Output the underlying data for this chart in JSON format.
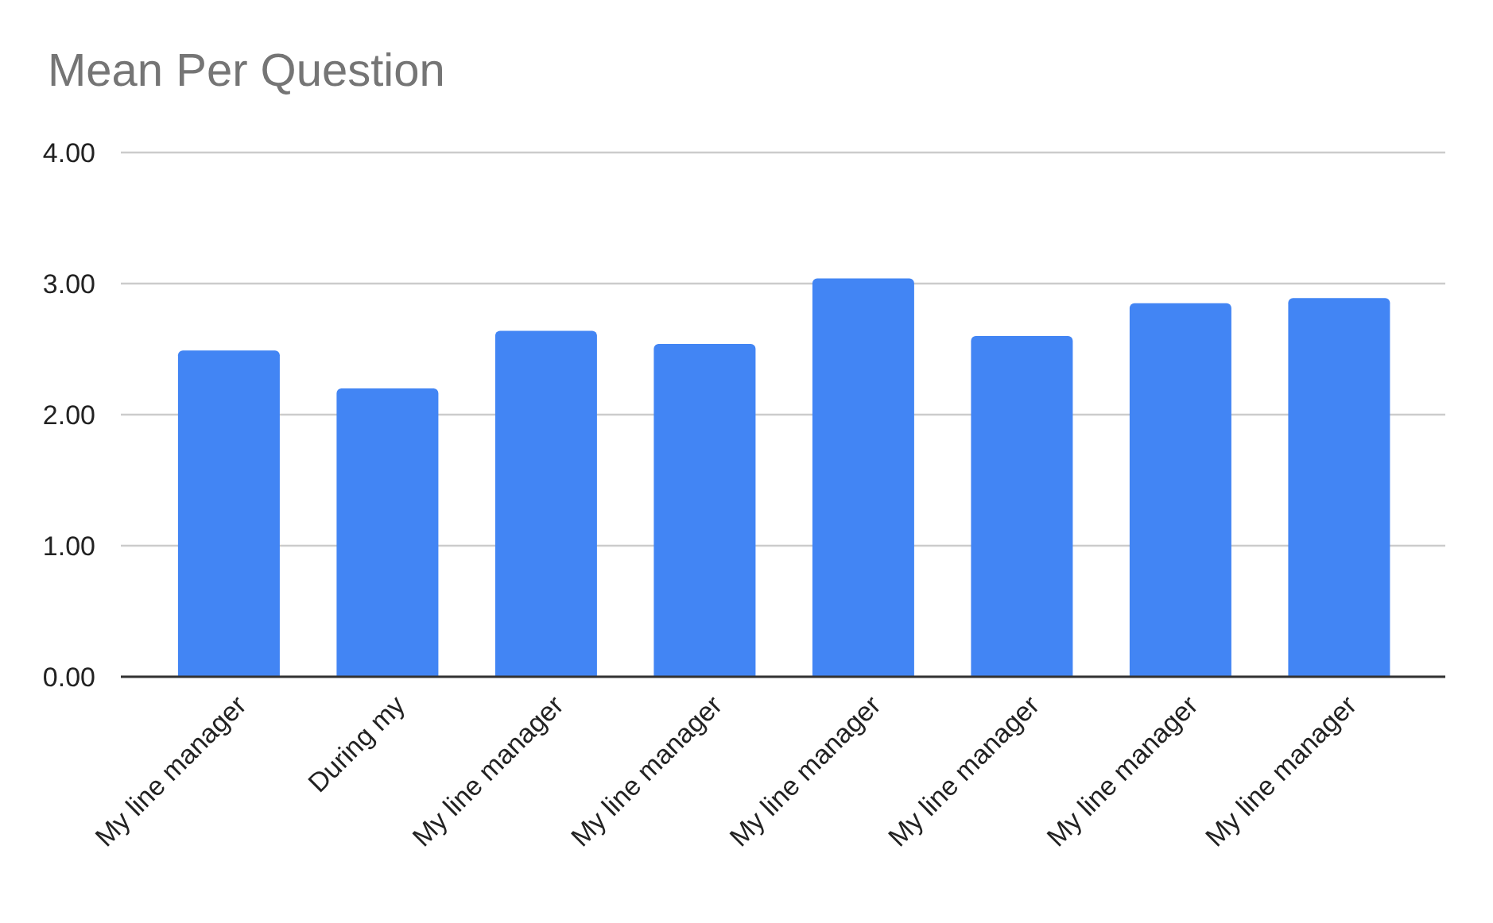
{
  "chart_data": {
    "type": "bar",
    "title": "Mean Per Question",
    "categories": [
      "My line manager",
      "During my",
      "My line manager",
      "My line manager",
      "My line manager",
      "My line manager",
      "My line manager",
      "My line manager"
    ],
    "values": [
      2.49,
      2.2,
      2.64,
      2.54,
      3.04,
      2.6,
      2.85,
      2.89
    ],
    "color": "#4285f4",
    "ylim": [
      0,
      4
    ],
    "yticks": [
      {
        "value": 0,
        "label": "0.00"
      },
      {
        "value": 1,
        "label": "1.00"
      },
      {
        "value": 2,
        "label": "2.00"
      },
      {
        "value": 3,
        "label": "3.00"
      },
      {
        "value": 4,
        "label": "4.00"
      }
    ],
    "grid": "y"
  }
}
